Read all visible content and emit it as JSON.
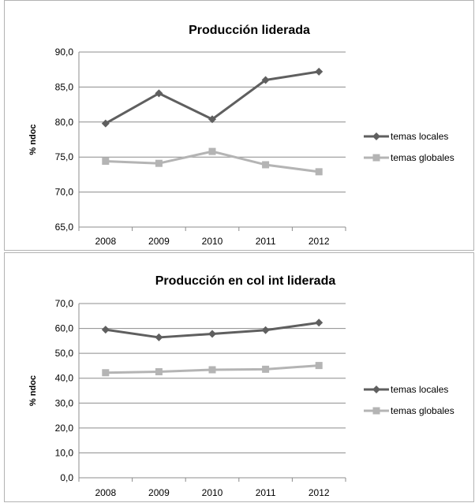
{
  "colors": {
    "temas_locales": "#5f5f5f",
    "temas_globales": "#b4b4b4",
    "grid": "#8c8c8c"
  },
  "chart_data": [
    {
      "type": "line",
      "title": "Producción liderada",
      "xlabel": "",
      "ylabel": "% ndoc",
      "categories": [
        "2008",
        "2009",
        "2010",
        "2011",
        "2012"
      ],
      "ylim": [
        65,
        90
      ],
      "yticks": [
        "65,0",
        "70,0",
        "75,0",
        "80,0",
        "85,0",
        "90,0"
      ],
      "grid": true,
      "legend": "right",
      "series": [
        {
          "name": "temas locales",
          "marker": "diamond",
          "values": [
            79.8,
            84.1,
            80.4,
            86.0,
            87.2
          ]
        },
        {
          "name": "temas globales",
          "marker": "square",
          "values": [
            74.4,
            74.1,
            75.8,
            73.9,
            72.9
          ]
        }
      ]
    },
    {
      "type": "line",
      "title": "Producción en col int liderada",
      "xlabel": "",
      "ylabel": "% ndoc",
      "categories": [
        "2008",
        "2009",
        "2010",
        "2011",
        "2012"
      ],
      "ylim": [
        0,
        70
      ],
      "yticks": [
        "0,0",
        "10,0",
        "20,0",
        "30,0",
        "40,0",
        "50,0",
        "60,0",
        "70,0"
      ],
      "grid": true,
      "legend": "right",
      "series": [
        {
          "name": "temas locales",
          "marker": "diamond",
          "values": [
            59.5,
            56.4,
            57.8,
            59.3,
            62.3
          ]
        },
        {
          "name": "temas globales",
          "marker": "square",
          "values": [
            42.2,
            42.6,
            43.4,
            43.6,
            45.1
          ]
        }
      ]
    }
  ]
}
